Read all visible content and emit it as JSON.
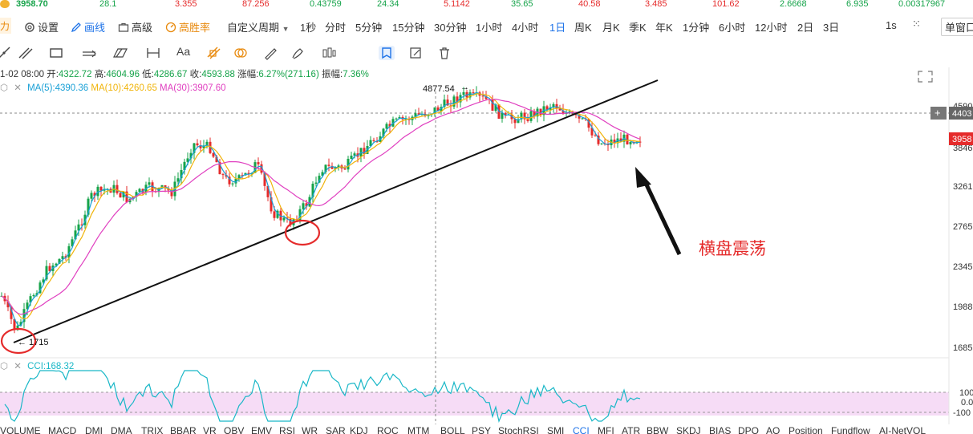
{
  "ticker_strip": {
    "items": [
      "3958.70",
      "28.1",
      "3.355",
      "87.256",
      "0.43759",
      "24.34",
      "5.1142",
      "35.65",
      "40.58",
      "3.485",
      "101.62",
      "2.6668",
      "6.935",
      "0.00317967"
    ]
  },
  "toolbar": {
    "left_tag": "力",
    "settings_label": "设置",
    "draw_label": "画线",
    "advanced_label": "高级",
    "win_rate_label": "高胜率",
    "custom_period_label": "自定义周期",
    "periods": [
      "1秒",
      "分时",
      "5分钟",
      "15分钟",
      "30分钟",
      "1小时",
      "4小时",
      "1日",
      "周K",
      "月K",
      "季K",
      "年K",
      "1分钟",
      "6小时",
      "12小时",
      "2日",
      "3日"
    ],
    "active_period": "1日",
    "interval_1s": "1s",
    "single_window_label": "单窗口"
  },
  "draw_tools": [
    "trend-line-tool",
    "multi-line-tool",
    "rectangle-tool",
    "channel-tool",
    "parallelogram-tool",
    "measure-tool",
    "text-tool",
    "fibonacci-tool",
    "fib-circle-tool",
    "ruler-tool",
    "brush-tool",
    "candle-tool",
    "magnet-tool",
    "note-tool",
    "delete-tool"
  ],
  "ohlc": {
    "date": "1-02 08:00",
    "open_label": "开:",
    "open": "4322.72",
    "high_label": "高:",
    "high": "4604.96",
    "low_label": "低:",
    "low": "4286.67",
    "close_label": "收:",
    "close": "4593.88",
    "change_label": "涨幅:",
    "change": "6.27%(271.16)",
    "amp_label": "振幅:",
    "amp": "7.36%"
  },
  "ma": {
    "ma5": "MA(5):4390.36",
    "ma10": "MA(10):4260.65",
    "ma30": "MA(30):3907.60",
    "colors": {
      "ma5": "#19a0d6",
      "ma10": "#f0b40a",
      "ma30": "#e040c0"
    }
  },
  "cci": {
    "label": "CCI:168.32",
    "color": "#19b7c7"
  },
  "chart_data": {
    "type": "candlestick",
    "y_ticks": [
      "4590",
      "4403",
      "3958",
      "3846",
      "3261",
      "2765",
      "2345",
      "1988",
      "1685"
    ],
    "high_marker": "4877.54",
    "low_marker": "1715",
    "last_price": "3958",
    "crosshair_price": "4403",
    "cci_ticks": [
      "100",
      "0.0",
      "-100"
    ],
    "up_color": "#16a34a",
    "down_color": "#e52b2b",
    "bg_indicator": "#f6dcf6"
  },
  "annotation": {
    "text": "横盘震荡",
    "color": "#e52b2b"
  },
  "bottom_tabs": [
    "VOLUME",
    "MACD",
    "DMI",
    "DMA",
    "TRIX",
    "BBAR",
    "VR",
    "OBV",
    "EMV",
    "RSI",
    "WR",
    "SAR",
    "KDJ",
    "ROC",
    "MTM",
    "BOLL",
    "PSY",
    "StochRSI",
    "SMI",
    "CCI",
    "MFI",
    "ATR",
    "BBW",
    "SKDJ",
    "BIAS",
    "DPO",
    "AO",
    "Position",
    "Fundflow",
    "AI-NetVOL"
  ],
  "active_tab": "CCI"
}
